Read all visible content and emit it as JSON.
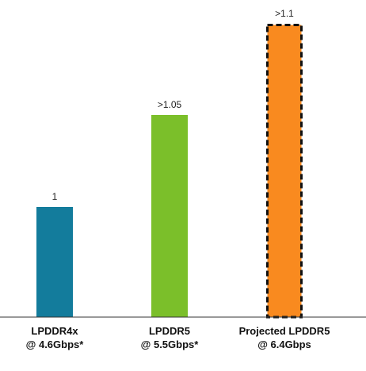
{
  "chart_data": {
    "type": "bar",
    "categories": [
      [
        "LPDDR4x",
        "@ 4.6Gbps*"
      ],
      [
        "LPDDR5",
        "@ 5.5Gbps*"
      ],
      [
        "Projected LPDDR5",
        "@ 6.4Gbps"
      ]
    ],
    "values": [
      1,
      1.05,
      1.1
    ],
    "data_labels": [
      "1",
      ">1.05",
      ">1.1"
    ],
    "colors": [
      "#137c9c",
      "#7bbf2a",
      "#f98a1f"
    ],
    "highlight": {
      "index": 2,
      "border": "dashed",
      "border_color": "#111111"
    },
    "xlabel": "",
    "ylabel": "",
    "grid": false,
    "legend": "none"
  }
}
